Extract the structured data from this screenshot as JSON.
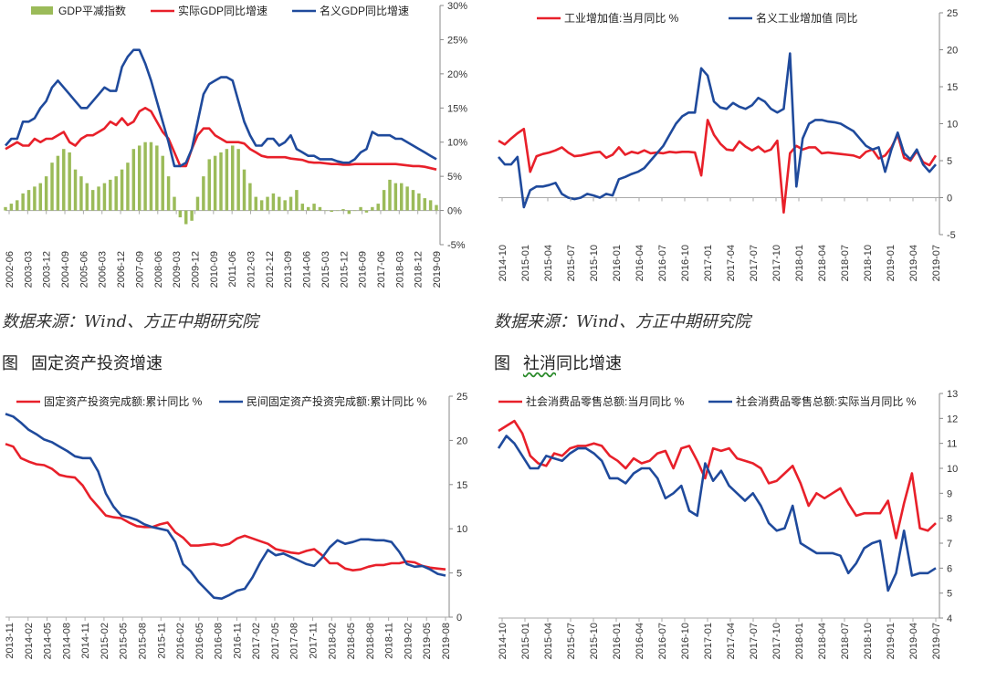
{
  "notes": {
    "left": "数据来源：Wind、方正中期研究院",
    "right": "数据来源：Wind、方正中期研究院"
  },
  "captions": {
    "left_label": "图",
    "left_title": "固定资产投资增速",
    "right_label": "图",
    "right_title_a": "社消",
    "right_title_b": "同比增速"
  },
  "colors": {
    "red": "#e8202a",
    "blue": "#1f4a9c",
    "green": "#9bbb59",
    "axis": "#888888"
  },
  "chart_data": [
    {
      "id": "gdp",
      "type": "line",
      "bar_series": {
        "name": "GDP平减指数",
        "color": "#9bbb59",
        "values": [
          0.5,
          1,
          1.5,
          2.5,
          3,
          3.5,
          4,
          5,
          7,
          8,
          9,
          8.5,
          6,
          5,
          4,
          3,
          3.5,
          4,
          4.5,
          5,
          6,
          7,
          9,
          9.5,
          10,
          10,
          9.5,
          8,
          5,
          2,
          -1,
          -2,
          -1.5,
          2,
          5,
          7.5,
          8,
          8.5,
          9,
          9.5,
          9,
          6,
          4,
          2,
          1.5,
          2,
          2.5,
          2,
          1.5,
          2,
          3,
          1,
          0.5,
          1,
          0.5,
          0,
          -0.2,
          0,
          0.2,
          -0.5,
          0,
          0.5,
          -0.3,
          0.5,
          1,
          3,
          4.5,
          4,
          4,
          3.5,
          3,
          2.5,
          1.8,
          1.5,
          0.8
        ]
      },
      "series": [
        {
          "name": "实际GDP同比增速",
          "color": "#e8202a",
          "values": [
            9,
            9.5,
            10,
            9.5,
            9.5,
            10.5,
            10,
            10.5,
            10.5,
            11,
            11.5,
            10,
            9.5,
            10.5,
            11,
            11,
            11.5,
            12,
            13,
            12.5,
            13.5,
            12.5,
            13,
            14.5,
            15,
            14.5,
            13,
            11.5,
            10.5,
            8.5,
            6.5,
            6.5,
            9,
            11,
            12,
            12,
            11,
            10.5,
            10,
            10,
            10,
            9.8,
            9,
            8.5,
            8,
            7.8,
            7.8,
            7.8,
            7.8,
            7.6,
            7.5,
            7.4,
            7.1,
            7,
            7,
            6.9,
            6.8,
            6.8,
            6.7,
            6.7,
            6.8,
            6.8,
            6.8,
            6.8,
            6.8,
            6.8,
            6.8,
            6.8,
            6.7,
            6.6,
            6.5,
            6.5,
            6.4,
            6.2,
            6.0
          ]
        },
        {
          "name": "名义GDP同比增速",
          "color": "#1f4a9c",
          "values": [
            9.5,
            10.5,
            10.5,
            13,
            13,
            13.5,
            15,
            16,
            18,
            19,
            18,
            17,
            16,
            15,
            15,
            16,
            17,
            18,
            17.5,
            17.5,
            21,
            22.5,
            23.5,
            23.5,
            21.5,
            19,
            16,
            13,
            10,
            6.5,
            6.5,
            7,
            9,
            13,
            17,
            18.5,
            19,
            19.5,
            19.5,
            19,
            16,
            13,
            11,
            9.5,
            9.5,
            10.5,
            10.5,
            9.5,
            10,
            11,
            9,
            8.5,
            8,
            8,
            7.5,
            7.5,
            7.5,
            7.2,
            7,
            7,
            7.5,
            8.5,
            9,
            11.5,
            11,
            11,
            11,
            10.5,
            10.5,
            10,
            9.5,
            9,
            8.5,
            8,
            7.5
          ]
        }
      ],
      "x_ticks": [
        "2002-06",
        "2003-03",
        "2003-12",
        "2004-09",
        "2005-06",
        "2006-03",
        "2006-12",
        "2007-09",
        "2008-06",
        "2009-03",
        "2009-12",
        "2010-09",
        "2011-06",
        "2012-03",
        "2012-12",
        "2013-09",
        "2014-06",
        "2015-03",
        "2015-12",
        "2016-09",
        "2017-06",
        "2018-03",
        "2018-12",
        "2019-09"
      ],
      "y_ticks": [
        "30%",
        "25%",
        "20%",
        "15%",
        "10%",
        "5%",
        "0%",
        "-5%"
      ],
      "ylim": [
        -5,
        30
      ]
    },
    {
      "id": "industry",
      "type": "line",
      "series": [
        {
          "name": "工业增加值:当月同比  %",
          "color": "#e8202a",
          "values": [
            7.7,
            7.2,
            8,
            8.7,
            9.3,
            3.5,
            5.6,
            5.9,
            6.1,
            6.4,
            6.8,
            6.1,
            5.6,
            5.7,
            5.9,
            6.1,
            6.2,
            5.4,
            5.8,
            6.8,
            5.8,
            6.2,
            6.0,
            6.4,
            6.0,
            6.1,
            6.0,
            6.2,
            6.1,
            6.2,
            6.2,
            6.1,
            3.0,
            10.5,
            8.5,
            7.3,
            6.5,
            6.4,
            7.6,
            6.9,
            6.4,
            6.9,
            6.2,
            6.5,
            7.7,
            -2.0,
            6.0,
            7.0,
            6.5,
            6.8,
            6.8,
            6.0,
            6.1,
            6.0,
            5.9,
            5.8,
            5.7,
            5.4,
            6.2,
            6.5,
            5.3,
            5.7,
            6.8,
            8.5,
            5.4,
            5.0,
            6.3,
            4.8,
            4.4,
            5.7
          ]
        },
        {
          "name": "名义工业增加值  同比",
          "color": "#1f4a9c",
          "values": [
            5.5,
            4.5,
            4.5,
            5.5,
            -1.3,
            1.0,
            1.5,
            1.5,
            1.7,
            2.0,
            0.5,
            0,
            -0.2,
            0,
            0.5,
            0.3,
            0,
            0.5,
            0.3,
            2.5,
            2.8,
            3.2,
            3.5,
            4.0,
            5.0,
            6.0,
            7.0,
            8.5,
            10,
            11,
            11.5,
            11.5,
            17.5,
            16.5,
            13,
            12.2,
            12,
            12.8,
            12.3,
            12,
            12.5,
            13.5,
            13,
            12,
            11.5,
            12,
            19.5,
            1.5,
            8,
            10,
            10.5,
            10.5,
            10.3,
            10.2,
            10,
            9.5,
            9,
            8,
            7,
            6.5,
            6.8,
            3.5,
            6.5,
            8.8,
            6,
            5.2,
            6.5,
            4.5,
            3.5,
            4.5
          ]
        }
      ],
      "x_ticks": [
        "2014-10",
        "2015-01",
        "2015-04",
        "2015-07",
        "2015-10",
        "2016-01",
        "2016-04",
        "2016-07",
        "2016-10",
        "2017-01",
        "2017-04",
        "2017-07",
        "2017-10",
        "2018-01",
        "2018-04",
        "2018-07",
        "2018-10",
        "2019-01",
        "2019-04",
        "2019-07"
      ],
      "y_ticks": [
        "25",
        "20",
        "15",
        "10",
        "5",
        "0",
        "-5"
      ],
      "ylim": [
        -5,
        25
      ]
    },
    {
      "id": "fai",
      "type": "line",
      "series": [
        {
          "name": "固定资产投资完成额:累计同比  %",
          "color": "#e8202a",
          "values": [
            19.6,
            19.3,
            18,
            17.6,
            17.3,
            17.2,
            16.8,
            16.1,
            15.9,
            15.8,
            14.9,
            13.5,
            12.5,
            11.5,
            11.3,
            11.2,
            10.7,
            10.3,
            10.2,
            10.2,
            10.5,
            10.7,
            9.6,
            9,
            8.1,
            8.1,
            8.2,
            8.3,
            8.1,
            8.3,
            8.9,
            9.2,
            8.9,
            8.6,
            8.3,
            7.7,
            7.5,
            7.3,
            7.2,
            7.5,
            7.7,
            7.0,
            6.1,
            6.1,
            5.5,
            5.3,
            5.4,
            5.7,
            5.9,
            5.9,
            6.1,
            6.1,
            6.3,
            6.2,
            5.8,
            5.6,
            5.5,
            5.4
          ]
        },
        {
          "name": "民间固定资产投资完成额:累计同比  %",
          "color": "#1f4a9c",
          "values": [
            23,
            22.7,
            22,
            21.2,
            20.7,
            20.1,
            19.8,
            19.3,
            18.8,
            18.2,
            18.0,
            18.0,
            16.5,
            14,
            12.5,
            11.5,
            11.3,
            11.0,
            10.5,
            10.2,
            10.0,
            9.8,
            8.5,
            6,
            5.2,
            4.0,
            3.1,
            2.2,
            2.1,
            2.5,
            3.0,
            3.2,
            4.5,
            6.2,
            7.6,
            7.0,
            7.2,
            6.8,
            6.4,
            6.0,
            5.8,
            6.7,
            7.9,
            8.7,
            8.3,
            8.5,
            8.8,
            8.8,
            8.7,
            8.7,
            8.5,
            7.4,
            6.0,
            5.7,
            5.8,
            5.4,
            4.9,
            4.7
          ]
        }
      ],
      "x_ticks": [
        "2013-11",
        "2014-02",
        "2014-05",
        "2014-08",
        "2014-11",
        "2015-02",
        "2015-05",
        "2015-08",
        "2015-11",
        "2016-02",
        "2016-05",
        "2016-08",
        "2016-11",
        "2017-02",
        "2017-05",
        "2017-08",
        "2017-11",
        "2018-02",
        "2018-05",
        "2018-08",
        "2018-11",
        "2019-02",
        "2019-05",
        "2019-08"
      ],
      "y_ticks": [
        "25",
        "20",
        "15",
        "10",
        "5",
        "0"
      ],
      "ylim": [
        0,
        25
      ]
    },
    {
      "id": "retail",
      "type": "line",
      "series": [
        {
          "name": "社会消费品零售总额:当月同比  %",
          "color": "#e8202a",
          "values": [
            11.5,
            11.7,
            11.9,
            11.4,
            10.5,
            10.2,
            10.1,
            10.6,
            10.5,
            10.8,
            10.9,
            10.9,
            11.0,
            10.9,
            10.5,
            10.3,
            10.0,
            10.4,
            10.2,
            10.3,
            10.6,
            10.7,
            10.0,
            10.8,
            10.9,
            10.3,
            9.6,
            10.8,
            10.7,
            10.8,
            10.4,
            10.3,
            10.2,
            10.0,
            9.4,
            9.5,
            9.8,
            10.1,
            9.4,
            8.5,
            9.0,
            8.8,
            9.0,
            9.2,
            8.6,
            8.1,
            8.2,
            8.2,
            8.2,
            8.7,
            7.2,
            8.6,
            9.8,
            7.6,
            7.5,
            7.8
          ]
        },
        {
          "name": "社会消费品零售总额:实际当月同比  %",
          "color": "#1f4a9c",
          "values": [
            10.8,
            11.3,
            11.0,
            10.5,
            10.0,
            10.0,
            10.5,
            10.4,
            10.3,
            10.6,
            10.8,
            10.8,
            10.6,
            10.3,
            9.6,
            9.6,
            9.4,
            9.8,
            10.0,
            10.0,
            9.6,
            8.8,
            9.0,
            9.3,
            8.3,
            8.1,
            10.2,
            9.5,
            9.9,
            9.3,
            9.0,
            8.7,
            9.0,
            8.5,
            7.8,
            7.5,
            7.6,
            8.5,
            7.0,
            6.8,
            6.6,
            6.6,
            6.6,
            6.5,
            5.8,
            6.2,
            6.8,
            7.0,
            7.1,
            5.1,
            5.8,
            7.5,
            5.7,
            5.8,
            5.8,
            6.0
          ]
        }
      ],
      "x_ticks": [
        "2014-10",
        "2015-01",
        "2015-04",
        "2015-07",
        "2015-10",
        "2016-01",
        "2016-04",
        "2016-07",
        "2016-10",
        "2017-01",
        "2017-04",
        "2017-07",
        "2017-10",
        "2018-01",
        "2018-04",
        "2018-07",
        "2018-10",
        "2019-01",
        "2019-04",
        "2019-07"
      ],
      "y_ticks": [
        "13",
        "12",
        "11",
        "10",
        "9",
        "8",
        "7",
        "6",
        "5",
        "4"
      ],
      "ylim": [
        4,
        13
      ]
    }
  ]
}
